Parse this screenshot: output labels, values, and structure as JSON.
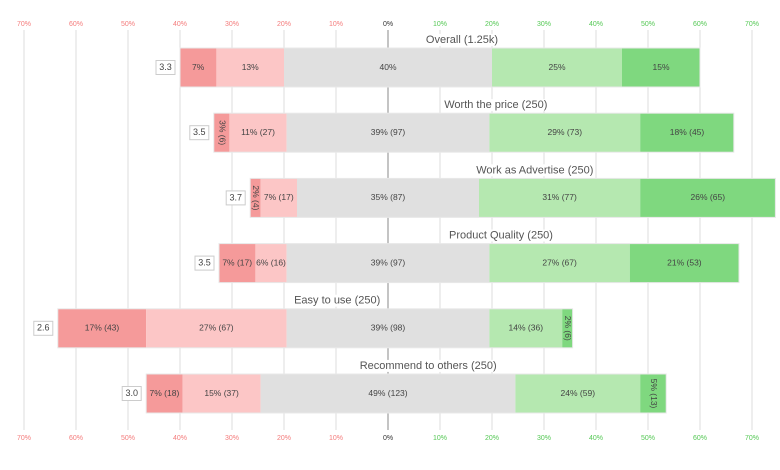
{
  "chart_data": {
    "type": "diverging_bar",
    "categories": [
      "Overall (1.25k)",
      "Worth the price (250)",
      "Work as Advertise (250)",
      "Product Quality (250)",
      "Easy to use (250)",
      "Recommend to others (250)"
    ],
    "scores": [
      3.3,
      3.5,
      3.7,
      3.5,
      2.6,
      3.0
    ],
    "score_labels": [
      "3.3",
      "3.5",
      "3.7",
      "3.5",
      "2.6",
      "3.0"
    ],
    "series": [
      {
        "color": "#f59a9a",
        "side": "negative",
        "values": [
          7,
          3,
          2,
          7,
          17,
          7
        ],
        "value_labels": [
          "7%",
          "3% (6)",
          "2% (4)",
          "7% (17)",
          "17% (43)",
          "7% (18)"
        ]
      },
      {
        "color": "#fcc6c6",
        "side": "negative",
        "values": [
          13,
          11,
          7,
          6,
          27,
          15
        ],
        "value_labels": [
          "13%",
          "11% (27)",
          "7% (17)",
          "6% (16)",
          "27% (67)",
          "15% (37)"
        ]
      },
      {
        "color": "#e0e0e0",
        "side": "neutral",
        "values": [
          40,
          39,
          35,
          39,
          39,
          49
        ],
        "value_labels": [
          "40%",
          "39% (97)",
          "35% (87)",
          "39% (97)",
          "39% (98)",
          "49% (123)"
        ]
      },
      {
        "color": "#b5e8b0",
        "side": "positive",
        "values": [
          25,
          29,
          31,
          27,
          14,
          24
        ],
        "value_labels": [
          "25%",
          "29% (73)",
          "31% (77)",
          "27% (67)",
          "14% (36)",
          "24% (59)"
        ]
      },
      {
        "color": "#7fd87f",
        "side": "positive",
        "values": [
          15,
          18,
          26,
          21,
          2,
          5
        ],
        "value_labels": [
          "15%",
          "18% (45)",
          "26% (65)",
          "21% (53)",
          "2% (6)",
          "5% (13)"
        ]
      }
    ],
    "xlim": [
      -70,
      70
    ],
    "xticks": [
      {
        "value": -70,
        "label": "70%"
      },
      {
        "value": -60,
        "label": "60%"
      },
      {
        "value": -50,
        "label": "50%"
      },
      {
        "value": -40,
        "label": "40%"
      },
      {
        "value": -30,
        "label": "30%"
      },
      {
        "value": -20,
        "label": "20%"
      },
      {
        "value": -10,
        "label": "10%"
      },
      {
        "value": 0,
        "label": "0%"
      },
      {
        "value": 10,
        "label": "10%"
      },
      {
        "value": 20,
        "label": "20%"
      },
      {
        "value": 30,
        "label": "30%"
      },
      {
        "value": 40,
        "label": "40%"
      },
      {
        "value": 50,
        "label": "50%"
      },
      {
        "value": 60,
        "label": "60%"
      },
      {
        "value": 70,
        "label": "70%"
      }
    ],
    "grid": true
  }
}
